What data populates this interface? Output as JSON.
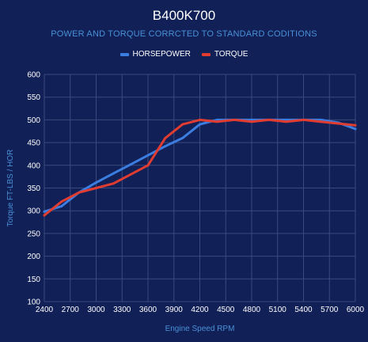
{
  "chart_data": {
    "type": "line",
    "title": "B400K700",
    "subtitle": "POWER AND TORQUE CORRCTED TO STANDARD CODITIONS",
    "xlabel": "Engine Speed RPM",
    "ylabel": "Torque FT-LBS / HOR",
    "xlim": [
      2400,
      6000
    ],
    "ylim": [
      100,
      600
    ],
    "x_ticks": [
      "2400",
      "2700",
      "3000",
      "3300",
      "3600",
      "3900",
      "4200",
      "4500",
      "4800",
      "5100",
      "5400",
      "5700",
      "6000"
    ],
    "y_ticks": [
      "100",
      "150",
      "200",
      "250",
      "300",
      "350",
      "400",
      "450",
      "500",
      "550",
      "600"
    ],
    "grid": true,
    "legend_position": "top",
    "series": [
      {
        "name": "HORSEPOWER",
        "color": "#3b7de0",
        "x": [
          2400,
          2600,
          2800,
          3000,
          3200,
          3400,
          3600,
          3800,
          4000,
          4200,
          4400,
          4600,
          4800,
          5000,
          5200,
          5400,
          5600,
          5800,
          6000
        ],
        "y": [
          298,
          310,
          340,
          362,
          382,
          402,
          422,
          442,
          460,
          490,
          500,
          500,
          500,
          500,
          500,
          500,
          500,
          494,
          480
        ]
      },
      {
        "name": "TORQUE",
        "color": "#e03c31",
        "x": [
          2400,
          2600,
          2800,
          3000,
          3200,
          3400,
          3600,
          3800,
          4000,
          4200,
          4400,
          4600,
          4800,
          5000,
          5200,
          5400,
          5600,
          5800,
          6000
        ],
        "y": [
          290,
          320,
          340,
          350,
          360,
          380,
          400,
          460,
          490,
          500,
          496,
          500,
          496,
          500,
          496,
          500,
          496,
          492,
          488
        ]
      }
    ]
  }
}
